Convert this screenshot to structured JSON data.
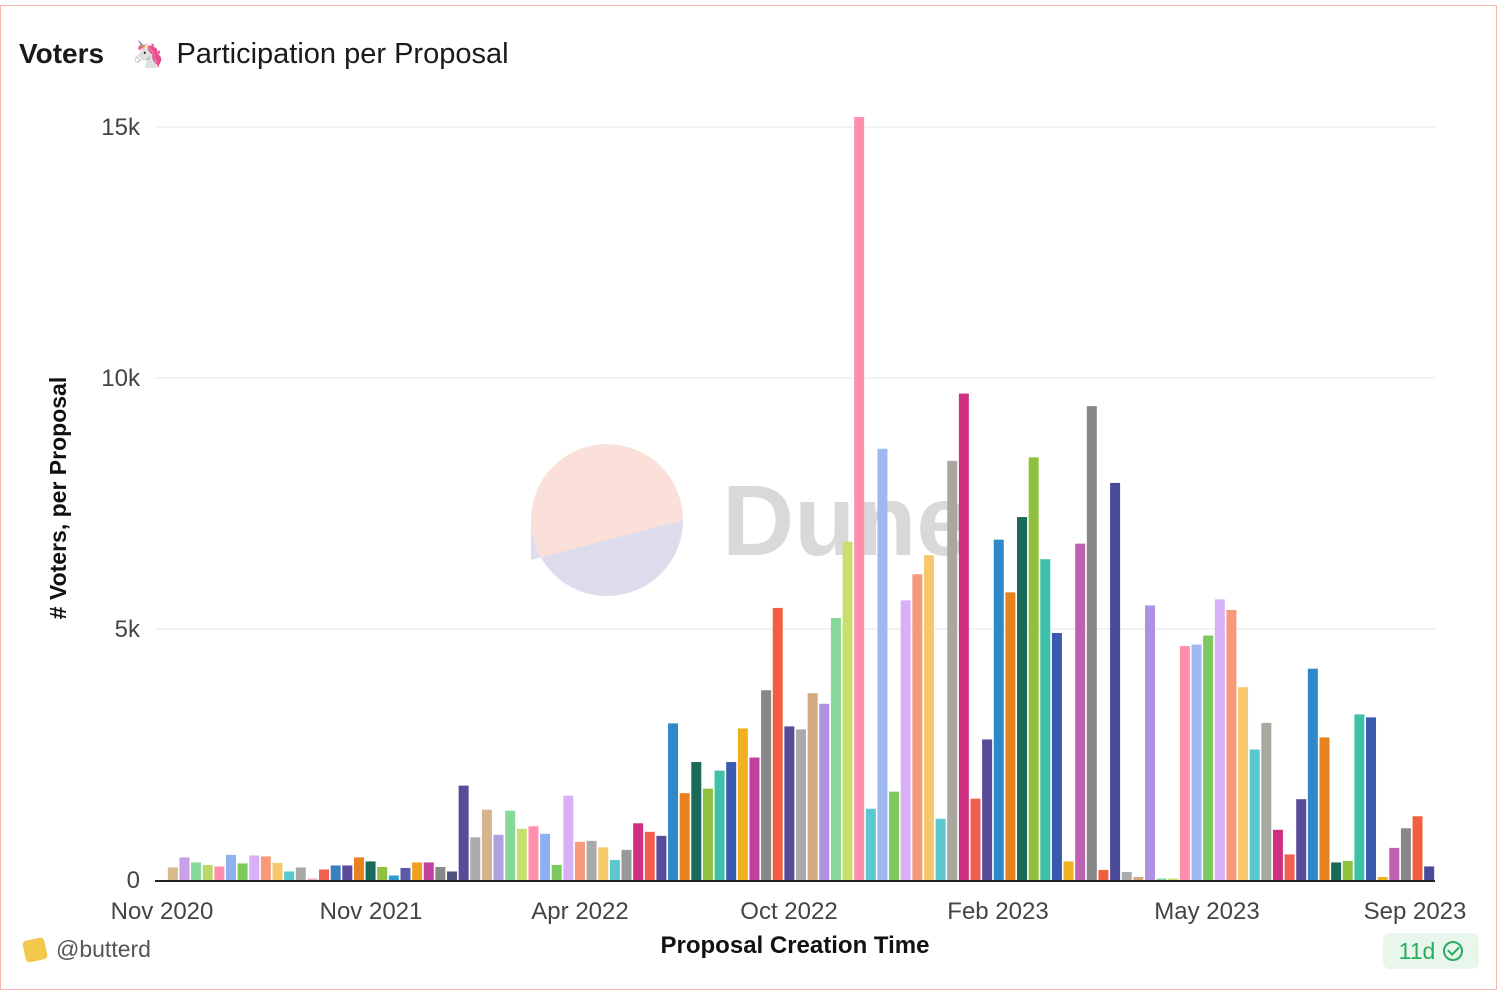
{
  "header": {
    "name": "Voters",
    "emoji": "🦄",
    "title": "Participation per Proposal"
  },
  "footer": {
    "user": "@butterd",
    "refresh_badge": "11d"
  },
  "watermark": "Dune",
  "chart_data": {
    "type": "bar",
    "title": "",
    "xlabel": "Proposal Creation Time",
    "ylabel": "# Voters, per Proposal",
    "ylim": [
      0,
      15000
    ],
    "yticks": [
      0,
      5000,
      10000,
      15000
    ],
    "ytick_labels": [
      "0",
      "5k",
      "10k",
      "15k"
    ],
    "xticks": [
      "Nov 2020",
      "Nov 2021",
      "Apr 2022",
      "Oct 2022",
      "Feb 2023",
      "May 2023",
      "Sep 2023"
    ],
    "values": [
      250,
      450,
      350,
      300,
      270,
      500,
      330,
      490,
      470,
      340,
      170,
      250,
      30,
      210,
      290,
      290,
      450,
      370,
      260,
      90,
      240,
      350,
      350,
      260,
      170,
      1880,
      850,
      1400,
      900,
      1380,
      1020,
      1070,
      920,
      300,
      1680,
      760,
      780,
      650,
      400,
      600,
      1130,
      960,
      880,
      3120,
      1730,
      2350,
      1820,
      2180,
      2350,
      3020,
      2440,
      3780,
      5420,
      3060,
      3000,
      3720,
      3510,
      5220,
      6740,
      15200,
      1420,
      8590,
      1760,
      5570,
      6090,
      6470,
      1220,
      8350,
      9690,
      1620,
      2800,
      6780,
      5730,
      7230,
      8420,
      6390,
      4920,
      370,
      6700,
      9440,
      200,
      7910,
      160,
      60,
      5470,
      30,
      30,
      4660,
      4690,
      4870,
      5590,
      5380,
      3840,
      2600,
      3130,
      1000,
      510,
      1610,
      4210,
      2840,
      350,
      380,
      3300,
      3240,
      60,
      640,
      1030,
      1270,
      270
    ],
    "colors": [
      "#d9b98c",
      "#c9a0e8",
      "#86d99a",
      "#b8d96a",
      "#ff8fab",
      "#8fb0f0",
      "#7dc95e",
      "#d8b0f8",
      "#f79a7a",
      "#f7c86b",
      "#5bc8d0",
      "#a8a8a8",
      "#e8b0c0",
      "#f06050",
      "#3a7fc0",
      "#5a4a9a",
      "#e8821e",
      "#1a6a5a",
      "#8fc040",
      "#2f9dd0",
      "#5a5aa8",
      "#f0a020",
      "#c040a0",
      "#888888",
      "#505080",
      "#5a4a9a",
      "#aaaaaa",
      "#d4b48c",
      "#b0a0e0",
      "#86d99a",
      "#c8e070",
      "#ff8fab",
      "#8fb0f0",
      "#7dc95e",
      "#d8b0f8",
      "#f79a7a",
      "#aaaaaa",
      "#f7c86b",
      "#5bc8d0",
      "#999999",
      "#d03080",
      "#f06050",
      "#5a4a9a",
      "#2f88c8",
      "#e8821e",
      "#1a6a5a",
      "#8fc040",
      "#3fc0a8",
      "#3a5ab0",
      "#f0b020",
      "#c040a0",
      "#888888",
      "#f06040",
      "#5a4a9a",
      "#aaaaaa",
      "#d4a880",
      "#b090e0",
      "#86d99a",
      "#c8e070",
      "#ff8fab",
      "#5bc8d0",
      "#9fb8f0",
      "#7dc95e",
      "#d8b0f8",
      "#f79a7a",
      "#f7c86b",
      "#5bc8d0",
      "#a8a8a0",
      "#d03080",
      "#f06050",
      "#5a4a9a",
      "#2f88c8",
      "#e8821e",
      "#1a6a5a",
      "#8fc040",
      "#3fc0a8",
      "#3a5ab0",
      "#f0b020",
      "#c060b0",
      "#888888",
      "#f06040",
      "#4a4a98",
      "#aaaaaa",
      "#d4a880",
      "#b090e0",
      "#86d99a",
      "#c8e070",
      "#ff8fab",
      "#9fb8f0",
      "#7dc95e",
      "#d8b0f8",
      "#f79a7a",
      "#f7c86b",
      "#5bc8d0",
      "#a8a8a0",
      "#d03080",
      "#f06050",
      "#5a4a9a",
      "#2f88c8",
      "#e8821e",
      "#1a6a5a",
      "#8fc040",
      "#3fc0a8",
      "#3a5ab0",
      "#f0b020",
      "#c060b0",
      "#888888",
      "#f06040",
      "#4a4a98"
    ]
  }
}
